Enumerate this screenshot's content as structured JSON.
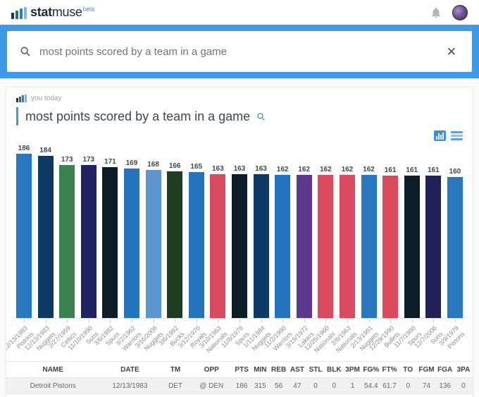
{
  "header": {
    "logo_stat": "stat",
    "logo_muse": "muse",
    "logo_beta": "beta"
  },
  "search": {
    "query": "most points scored by a team in a game",
    "clear_label": "✕"
  },
  "card": {
    "meta": "you today",
    "title": "most points scored by a team in a game"
  },
  "colors": {
    "accent_blue": "#3d9ae8",
    "band_blue": "#3d9ae8",
    "card_bg": "#ffffff",
    "row_bg": "#f1f1f2"
  },
  "chart_data": {
    "type": "bar",
    "title": "most points scored by a team in a game",
    "ylabel": "PTS",
    "ylim": [
      0,
      186
    ],
    "grid": false,
    "value_labels": true,
    "bars": [
      {
        "date": "12/13/1983",
        "team": "Pistons",
        "value": 186,
        "color": "#2878bf"
      },
      {
        "date": "12/13/1983",
        "team": "Nuggets",
        "value": 184,
        "color": "#0e3a66"
      },
      {
        "date": "2/27/1959",
        "team": "Celtics",
        "value": 173,
        "color": "#3a8351"
      },
      {
        "date": "11/10/1990",
        "team": "Suns",
        "value": 173,
        "color": "#1f2265"
      },
      {
        "date": "3/6/1982",
        "team": "Spurs",
        "value": 171,
        "color": "#0d1d27"
      },
      {
        "date": "3/2/1962",
        "team": "Warriors",
        "value": 169,
        "color": "#2374bd"
      },
      {
        "date": "3/16/2008",
        "team": "Nuggets",
        "value": 168,
        "color": "#5d95d1"
      },
      {
        "date": "3/6/1982",
        "team": "Bucks",
        "value": 166,
        "color": "#1f3d22"
      },
      {
        "date": "3/12/1970",
        "team": "Royals",
        "value": 165,
        "color": "#2374bd"
      },
      {
        "date": "3/10/1963",
        "team": "Nationals",
        "value": 163,
        "color": "#d94a5f"
      },
      {
        "date": "11/8/1978",
        "team": "Spurs",
        "value": 163,
        "color": "#0d1d27"
      },
      {
        "date": "1/11/1984",
        "team": "Nuggets",
        "value": 163,
        "color": "#0e3a66"
      },
      {
        "date": "11/2/1990",
        "team": "Warriors",
        "value": 162,
        "color": "#2374bd"
      },
      {
        "date": "3/19/1972",
        "team": "Lakers",
        "value": 162,
        "color": "#5c3b8e"
      },
      {
        "date": "12/25/1960",
        "team": "Nationals",
        "value": 162,
        "color": "#d94a5f"
      },
      {
        "date": "2/8/1963",
        "team": "Nationals",
        "value": 162,
        "color": "#d94a5f"
      },
      {
        "date": "2/13/1981",
        "team": "Nuggets",
        "value": 162,
        "color": "#2878bf"
      },
      {
        "date": "12/29/1990",
        "team": "Bullets",
        "value": 161,
        "color": "#d94a5f"
      },
      {
        "date": "11/7/1990",
        "team": "Spurs",
        "value": 161,
        "color": "#0d1d27"
      },
      {
        "date": "12/7/2006",
        "team": "Suns",
        "value": 161,
        "color": "#1f2158"
      },
      {
        "date": "3/9/1979",
        "team": "Pistons",
        "value": 160,
        "color": "#2878bf"
      }
    ]
  },
  "table": {
    "headers": [
      "NAME",
      "DATE",
      "TM",
      "OPP",
      "PTS",
      "MIN",
      "REB",
      "AST",
      "STL",
      "BLK",
      "3PM",
      "FG%",
      "FT%",
      "TO",
      "FGM",
      "FGA",
      "3PA"
    ],
    "rows": [
      [
        "Detroit Pistons",
        "12/13/1983",
        "DET",
        "@ DEN",
        "186",
        "315",
        "56",
        "47",
        "0",
        "0",
        "1",
        "54.4",
        "61.7",
        "0",
        "74",
        "136",
        "0"
      ]
    ]
  }
}
